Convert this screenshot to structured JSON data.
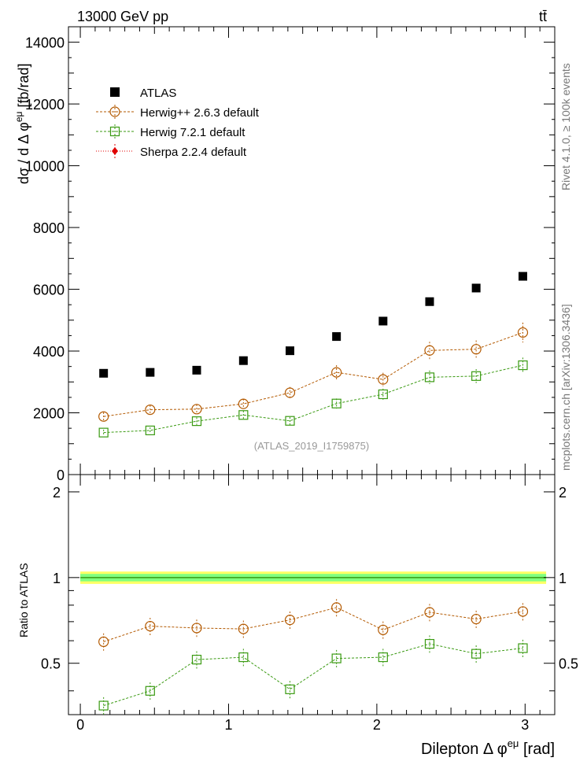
{
  "header": {
    "left": "13000 GeV pp",
    "right": "tt̄"
  },
  "side": {
    "rivet": "Rivet 4.1.0, ≥ 100k events",
    "mcplots": "mcplots.cern.ch [arXiv:1306.3436]"
  },
  "colors": {
    "atlas": "#000000",
    "herwigpp": "#b35900",
    "herwig7": "#3a9a12",
    "sherpa": "#e00000",
    "band_inner": "#80ff80",
    "band_outer": "#ffff66"
  },
  "chart_data": [
    {
      "type": "scatter",
      "panel": "main",
      "watermark": "(ATLAS_2019_I1759875)",
      "ylabel": "dσ / d Δ φeμ [fb/rad]",
      "ylabel_main": "dσ / d Δ φ",
      "ylabel_sup": "eμ",
      "ylabel_unit": "[fb/rad]",
      "xlim": [
        -0.08,
        3.2
      ],
      "ylim": [
        0,
        14500
      ],
      "yticks": [
        0,
        2000,
        4000,
        6000,
        8000,
        10000,
        12000,
        14000
      ],
      "ytick_labels": [
        "0",
        "2000",
        "4000",
        "6000",
        "8000",
        "10000",
        "12000",
        "14000"
      ],
      "x": [
        0.157,
        0.471,
        0.785,
        1.1,
        1.414,
        1.728,
        2.042,
        2.356,
        2.67,
        2.985
      ],
      "series": [
        {
          "name": "ATLAS",
          "key": "atlas",
          "marker": "square-filled",
          "values": [
            3280,
            3310,
            3380,
            3690,
            4010,
            4470,
            4970,
            5600,
            6040,
            6420
          ]
        },
        {
          "name": "Herwig++ 2.6.3 default",
          "key": "herwigpp",
          "marker": "circle-open",
          "values": [
            1880,
            2100,
            2120,
            2290,
            2650,
            3310,
            3080,
            4020,
            4060,
            4600
          ]
        },
        {
          "name": "Herwig 7.2.1 default",
          "key": "herwig7",
          "marker": "square-open",
          "values": [
            1360,
            1430,
            1730,
            1930,
            1740,
            2300,
            2600,
            3150,
            3190,
            3540
          ]
        },
        {
          "name": "Sherpa 2.2.4 default",
          "key": "sherpa",
          "marker": "diamond-filled",
          "values": []
        }
      ]
    },
    {
      "type": "scatter",
      "panel": "ratio",
      "ylabel": "Ratio to ATLAS",
      "xlabel": "Dilepton Δ φeμ [rad]",
      "xlabel_main": "Dilepton Δ φ",
      "xlabel_sup": "eμ",
      "xlabel_unit": "[rad]",
      "xlim": [
        -0.08,
        3.2
      ],
      "ylim": [
        0.33,
        2.3
      ],
      "yticks": [
        0.5,
        1,
        2
      ],
      "ytick_labels": [
        "0.5",
        "1",
        "2"
      ],
      "xticks": [
        0,
        1,
        2,
        3
      ],
      "xtick_labels": [
        "0",
        "1",
        "2",
        "3"
      ],
      "x": [
        0.157,
        0.471,
        0.785,
        1.1,
        1.414,
        1.728,
        2.042,
        2.356,
        2.67,
        2.985
      ],
      "series": [
        {
          "name": "Herwig++ 2.6.3 default",
          "key": "herwigpp",
          "marker": "circle-open",
          "values": [
            0.595,
            0.675,
            0.665,
            0.66,
            0.71,
            0.785,
            0.655,
            0.755,
            0.715,
            0.76
          ]
        },
        {
          "name": "Herwig 7.2.1 default",
          "key": "herwig7",
          "marker": "square-open",
          "values": [
            0.355,
            0.4,
            0.515,
            0.525,
            0.405,
            0.52,
            0.525,
            0.585,
            0.54,
            0.565
          ]
        }
      ]
    }
  ]
}
